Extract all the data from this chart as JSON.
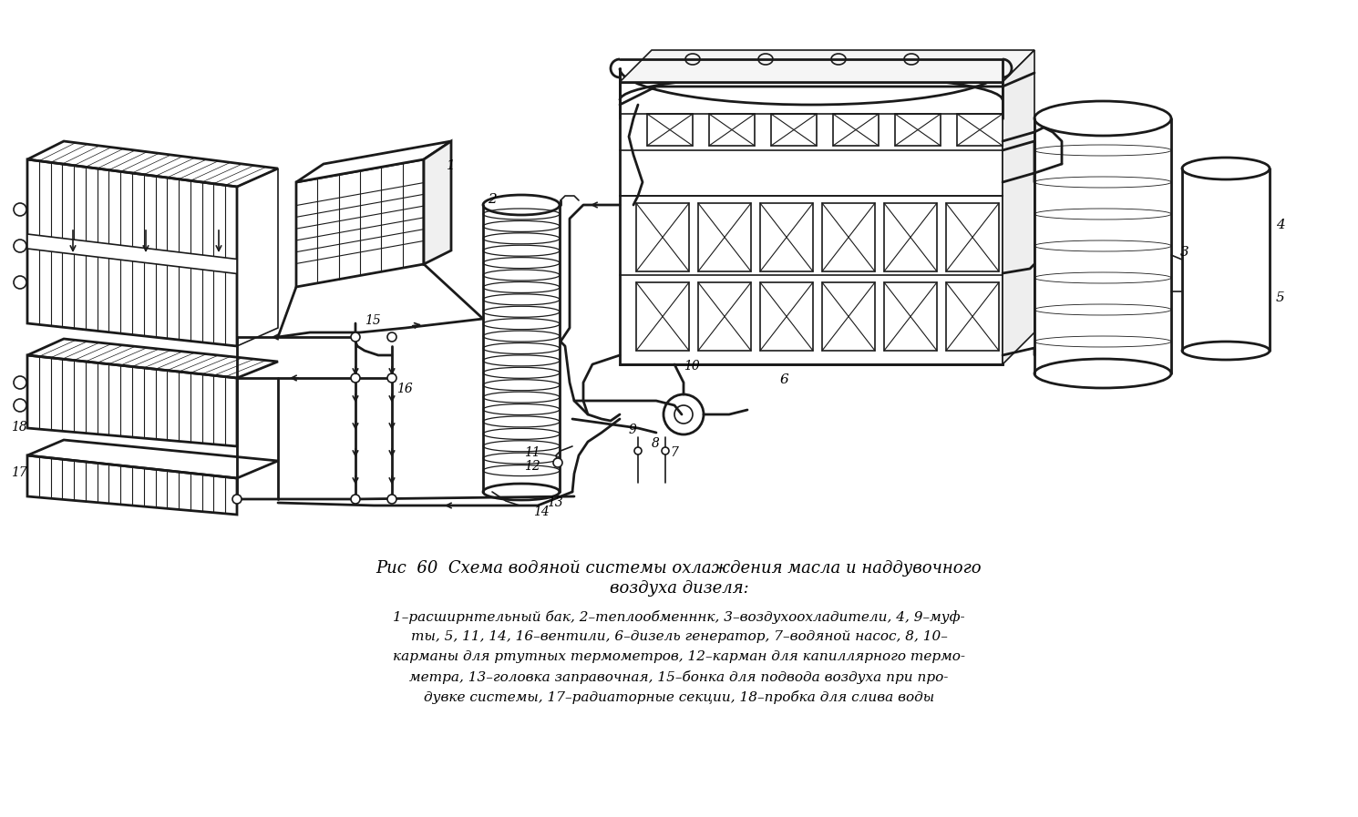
{
  "background_color": "#ffffff",
  "caption_title_line1": "Рис  60  Схема водяной системы охлаждения масла и наддувочного",
  "caption_title_line2": "воздуха дизеля:",
  "caption_body_line1": "1–расширнтельный бак, 2–теплообменннк, 3–воздухоохладители, 4, 9–муф-",
  "caption_body_line2": "ты, 5, 11, 14, 16–вентили, 6–дизель генератор, 7–водяной насос, 8, 10–",
  "caption_body_line3": "карманы для ртутных термометров, 12–карман для капиллярного термо-",
  "caption_body_line4": "метра, 13–головка заправочная, 15–бонка для подвода воздуха при про-",
  "caption_body_line5": "дувке системы, 17–радиаторные секции, 18–пробка для слива воды",
  "fig_width": 14.9,
  "fig_height": 8.97,
  "dpi": 100
}
